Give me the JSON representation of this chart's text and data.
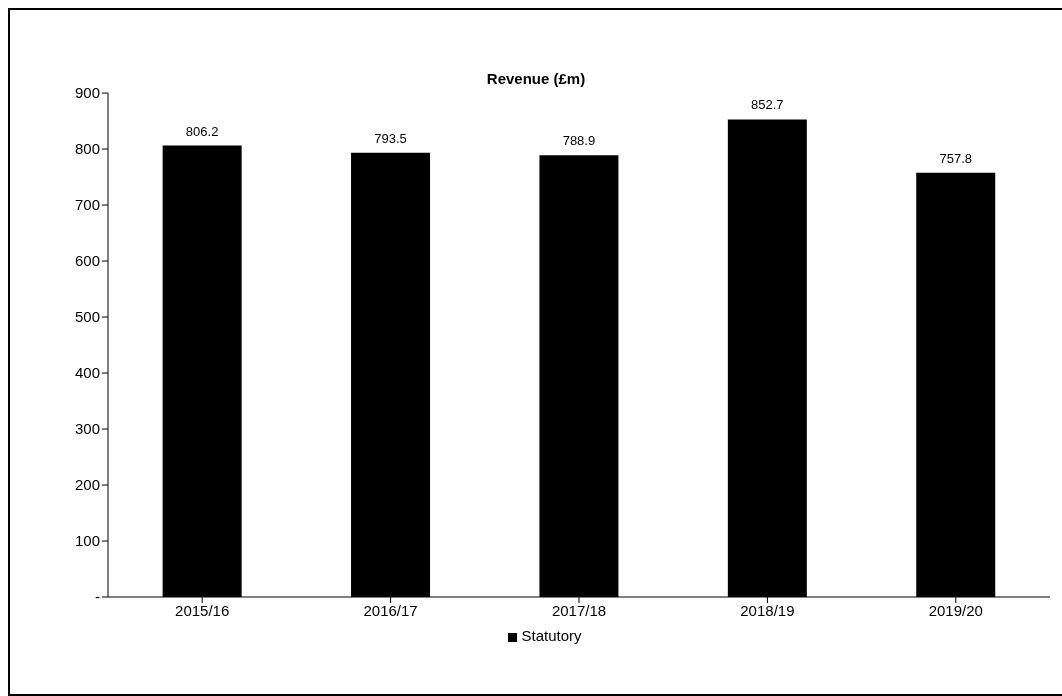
{
  "chart_data": {
    "type": "bar",
    "title": "Revenue (£m)",
    "categories": [
      "2015/16",
      "2016/17",
      "2017/18",
      "2018/19",
      "2019/20"
    ],
    "series": [
      {
        "name": "Statutory",
        "color": "#000000",
        "values": [
          806.2,
          793.5,
          788.9,
          852.7,
          757.8
        ]
      }
    ],
    "ylim": [
      0,
      900
    ],
    "yticks": [
      {
        "value": 0,
        "label": "-"
      },
      100,
      200,
      300,
      400,
      500,
      600,
      700,
      800,
      900
    ],
    "data_labels": true,
    "grid": false,
    "legend": "bottom"
  }
}
